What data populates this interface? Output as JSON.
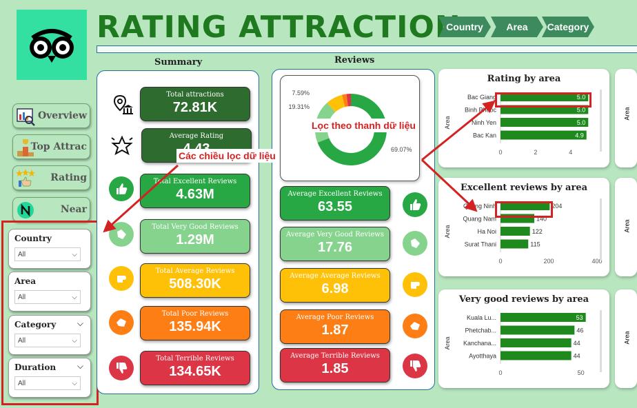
{
  "header": {
    "title": "RATING ATTRACTION",
    "filters": [
      "Country",
      "Area",
      "Category"
    ]
  },
  "nav": [
    {
      "label": "Overview",
      "icon": "overview-icon"
    },
    {
      "label": "Top Attrac",
      "icon": "trophy-icon"
    },
    {
      "label": "Rating",
      "icon": "thumbs-up-stars-icon"
    },
    {
      "label": "Near",
      "icon": "near-icon"
    }
  ],
  "slicers": [
    {
      "title": "Country",
      "value": "All"
    },
    {
      "title": "Area",
      "value": "All"
    },
    {
      "title": "Category",
      "value": "All"
    },
    {
      "title": "Duration",
      "value": "All"
    }
  ],
  "summary": {
    "title": "Summary",
    "kpis": [
      {
        "label": "Total attractions",
        "value": "72.81K",
        "color": "#2e6b2e",
        "icon": "location-building-icon"
      },
      {
        "label": "Average Rating",
        "value": "4.43",
        "color": "#2e6b2e",
        "icon": "star-outline-icon"
      },
      {
        "label": "Total Excellent Reviews",
        "value": "4.63M",
        "color": "#27a844",
        "icon": "thumbs-up-icon"
      },
      {
        "label": "Total Very Good Reviews",
        "value": "1.29M",
        "color": "#85d38c",
        "icon": "thumbs-up-tilted-icon"
      },
      {
        "label": "Total Average Reviews",
        "value": "508.30K",
        "color": "#ffc107",
        "icon": "hand-fist-icon"
      },
      {
        "label": "Total Poor Reviews",
        "value": "135.94K",
        "color": "#fd7e14",
        "icon": "thumbs-down-tilted-icon"
      },
      {
        "label": "Total Terrible Reviews",
        "value": "134.65K",
        "color": "#dc3545",
        "icon": "thumbs-down-icon"
      }
    ]
  },
  "reviews": {
    "title": "Reviews",
    "donut_labels": [
      "7.59%",
      "19.31%",
      "69.07%"
    ],
    "kpis": [
      {
        "label": "Average Excellent Reviews",
        "value": "63.55",
        "color": "#27a844",
        "icon": "thumbs-up-icon"
      },
      {
        "label": "Average Very Good Reviews",
        "value": "17.76",
        "color": "#85d38c",
        "icon": "thumbs-up-tilted-icon"
      },
      {
        "label": "Average Average Reviews",
        "value": "6.98",
        "color": "#ffc107",
        "icon": "hand-fist-icon"
      },
      {
        "label": "Average Poor Reviews",
        "value": "1.87",
        "color": "#fd7e14",
        "icon": "thumbs-down-tilted-icon"
      },
      {
        "label": "Average Terrible Reviews",
        "value": "1.85",
        "color": "#dc3545",
        "icon": "thumbs-down-icon"
      }
    ]
  },
  "annotations": {
    "filter_note": "Các chiều lọc dữ liệu",
    "bar_note": "Lọc theo thanh dữ liệu"
  },
  "chart_data": [
    {
      "type": "donut",
      "values": [
        69.07,
        19.31,
        7.59,
        2.05,
        1.98
      ],
      "labels": [
        "69.07%",
        "19.31%",
        "7.59%",
        "",
        ""
      ],
      "colors": [
        "#27a844",
        "#85d38c",
        "#ffc107",
        "#fd7e14",
        "#dc3545"
      ]
    },
    {
      "type": "bar",
      "title": "Rating by area",
      "ylabel": "Area",
      "categories": [
        "Bac Giang",
        "Binh Phuoc",
        "Ninh Yen",
        "Bac Kan"
      ],
      "values": [
        5.0,
        5.0,
        5.0,
        4.9
      ],
      "value_labels": [
        "5.0",
        "5.0",
        "5.0",
        "4.9"
      ],
      "xticks": [
        "0",
        "2",
        "4"
      ],
      "xlim": [
        0,
        5.5
      ]
    },
    {
      "type": "bar",
      "title": "Excellent reviews by area",
      "ylabel": "Area",
      "categories": [
        "Quang Ninh",
        "Quang Nam",
        "Ha Noi",
        "Surat Thani"
      ],
      "values": [
        204,
        140,
        122,
        115
      ],
      "value_labels": [
        "204",
        "140",
        "122",
        "115"
      ],
      "xticks": [
        "0",
        "200",
        "400"
      ],
      "xlim": [
        0,
        400
      ]
    },
    {
      "type": "bar",
      "title": "Very good reviews by area",
      "ylabel": "Area",
      "categories": [
        "Kuala Lu...",
        "Phetchab...",
        "Kanchana...",
        "Ayotthaya"
      ],
      "values": [
        53,
        46,
        44,
        44
      ],
      "value_labels": [
        "53",
        "46",
        "44",
        "44"
      ],
      "xticks": [
        "0",
        "50"
      ],
      "xlim": [
        0,
        60
      ]
    }
  ],
  "side_cards_ylabel": "Area"
}
